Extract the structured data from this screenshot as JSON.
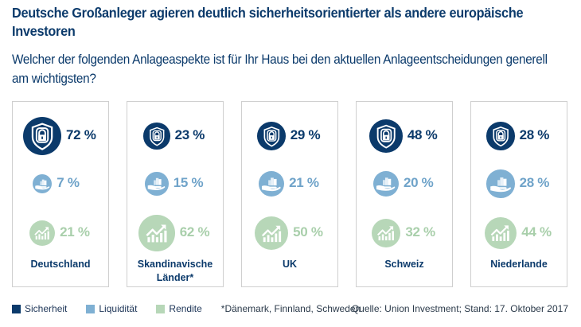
{
  "title": "Deutsche Großanleger agieren deutlich sicherheitsorientierter als andere europäische Investoren",
  "subtitle": "Welcher der folgenden Anlageaspekte ist für Ihr Haus bei den aktuellen Anlageentscheidungen generell am wichtigsten?",
  "colors": {
    "sicherheit": "#0b3a6b",
    "liquiditaet": "#7fb0d3",
    "rendite": "#b7d7b8",
    "sicherheit_text": "#0b3a6b",
    "liquiditaet_text": "#6fa3c9",
    "rendite_text": "#a9cfab"
  },
  "legend": {
    "items": [
      {
        "label": "Sicherheit",
        "key": "sicherheit",
        "icon": "shield-lock-icon"
      },
      {
        "label": "Liquidität",
        "key": "liquiditaet",
        "icon": "hand-coins-icon"
      },
      {
        "label": "Rendite",
        "key": "rendite",
        "icon": "growth-chart-icon"
      }
    ],
    "footnote": "*Dänemark, Finnland, Schweden"
  },
  "source": "Quelle: Union Investment; Stand: 17. Oktober 2017",
  "chart_data": {
    "type": "table",
    "title": "Deutsche Großanleger agieren deutlich sicherheitsorientierter als andere europäische Investoren",
    "subtitle": "Welcher der folgenden Anlageaspekte ist für Ihr Haus bei den aktuellen Anlageentscheidungen generell am wichtigsten?",
    "unit": "%",
    "categories": [
      "Deutschland",
      "Skandinavische Länder*",
      "UK",
      "Schweiz",
      "Niederlande"
    ],
    "series": [
      {
        "name": "Sicherheit",
        "values": [
          72,
          23,
          29,
          48,
          28
        ]
      },
      {
        "name": "Liquidität",
        "values": [
          7,
          15,
          21,
          20,
          28
        ]
      },
      {
        "name": "Rendite",
        "values": [
          21,
          62,
          50,
          32,
          44
        ]
      }
    ],
    "legend_position": "bottom-left",
    "panels": [
      {
        "country": "Deutschland",
        "sicherheit": 72,
        "liquiditaet": 7,
        "rendite": 21,
        "labels": {
          "sicherheit": "72 %",
          "liquiditaet": "7 %",
          "rendite": "21 %"
        }
      },
      {
        "country": "Skandinavische Länder*",
        "sicherheit": 23,
        "liquiditaet": 15,
        "rendite": 62,
        "labels": {
          "sicherheit": "23 %",
          "liquiditaet": "15 %",
          "rendite": "62 %"
        }
      },
      {
        "country": "UK",
        "sicherheit": 29,
        "liquiditaet": 21,
        "rendite": 50,
        "labels": {
          "sicherheit": "29 %",
          "liquiditaet": "21 %",
          "rendite": "50 %"
        }
      },
      {
        "country": "Schweiz",
        "sicherheit": 48,
        "liquiditaet": 20,
        "rendite": 32,
        "labels": {
          "sicherheit": "48 %",
          "liquiditaet": "20 %",
          "rendite": "32 %"
        }
      },
      {
        "country": "Niederlande",
        "sicherheit": 28,
        "liquiditaet": 28,
        "rendite": 44,
        "labels": {
          "sicherheit": "28 %",
          "liquiditaet": "28 %",
          "rendite": "44 %"
        }
      }
    ]
  }
}
